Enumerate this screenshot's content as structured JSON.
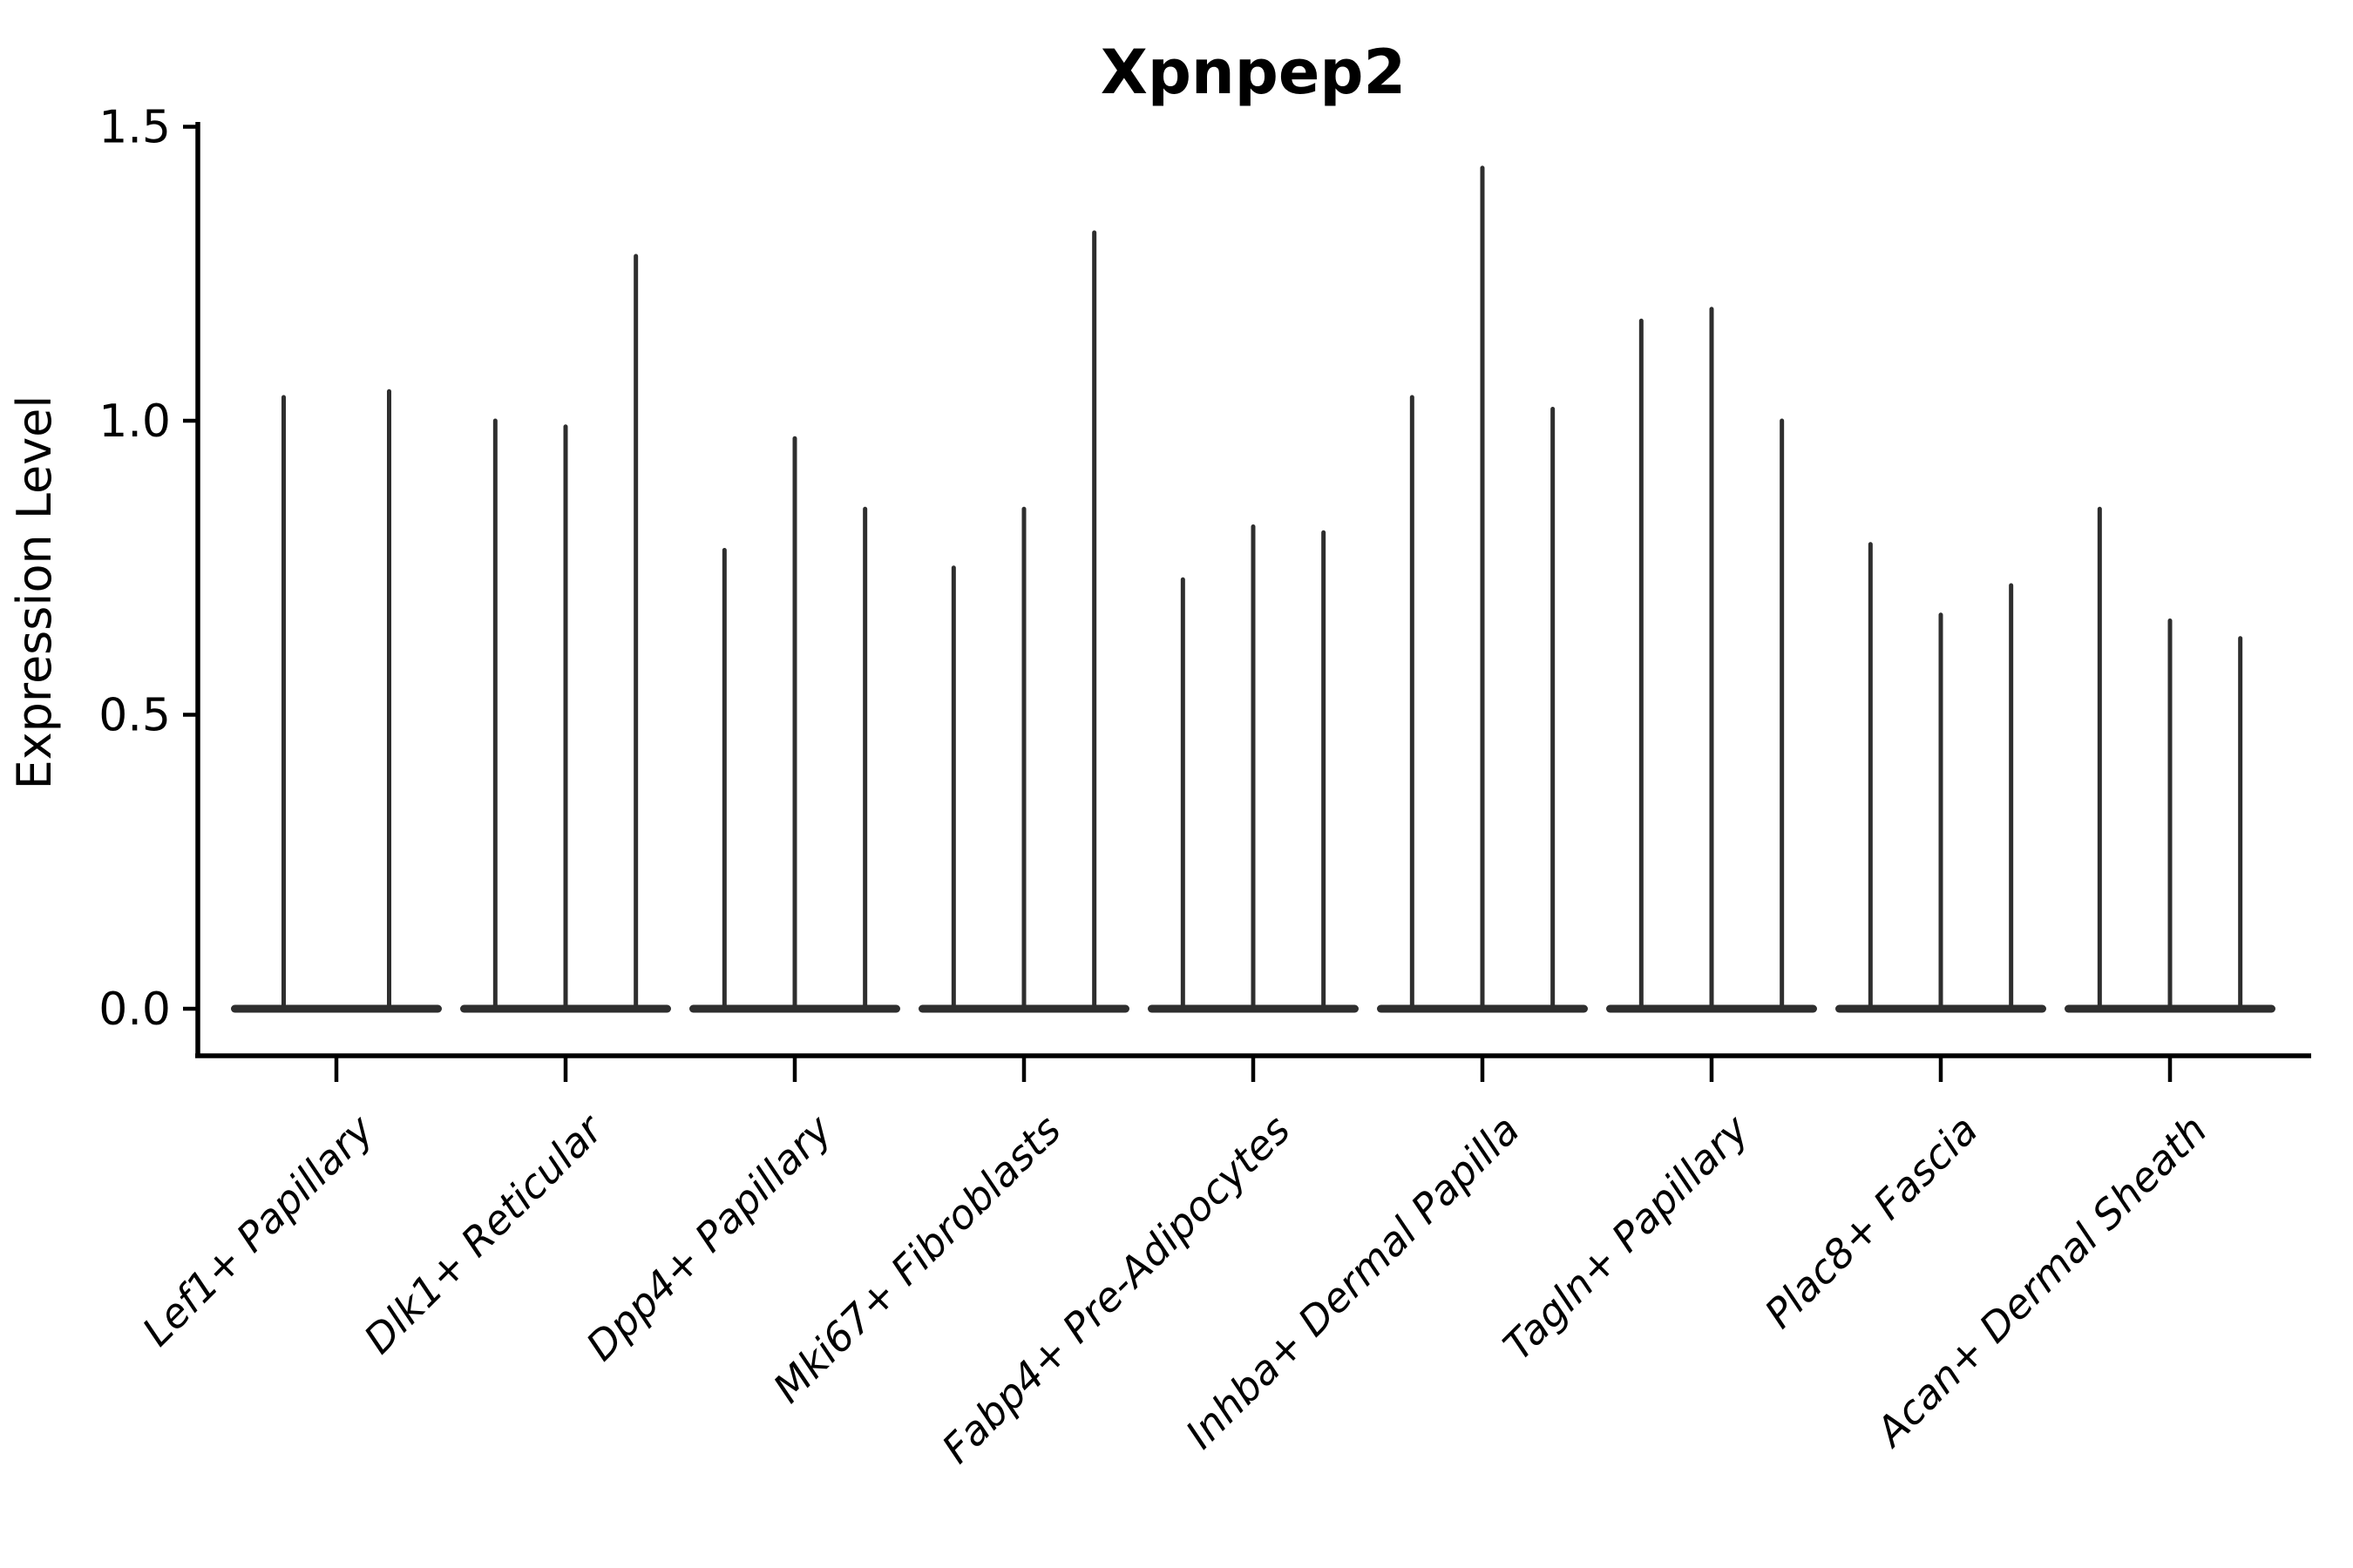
{
  "figure": {
    "title": "Xpnpep2",
    "y_axis_label": "Expression Level"
  },
  "chart_data": {
    "type": "violin",
    "title": "Xpnpep2",
    "xlabel": "",
    "ylabel": "Expression Level",
    "ylim": [
      0,
      1.5
    ],
    "yticks": [
      "0.0",
      "0.5",
      "1.0",
      "1.5"
    ],
    "ytick_values": [
      0.0,
      0.5,
      1.0,
      1.5
    ],
    "grid": false,
    "legend": null,
    "shape_note": "sparse single-cell expression violins: wide flat base at 0 with one thin vertical spike per violin reaching its maximum expression value",
    "categories": [
      "Lef1+ Papillary",
      "Dlk1+ Reticular",
      "Dpp4+ Papillary",
      "Mki67+ Fibroblasts",
      "Fabp4+ Pre-Adipocytes",
      "Inhba+ Dermal Papilla",
      "Tagln+ Papillary",
      "Plac8+ Fascia",
      "Acan+ Dermal Sheath"
    ],
    "violin_peaks": [
      [
        1.04,
        1.05
      ],
      [
        1.0,
        0.99,
        1.28
      ],
      [
        0.78,
        0.97,
        0.85
      ],
      [
        0.75,
        0.85,
        1.32
      ],
      [
        0.73,
        0.82,
        0.81
      ],
      [
        1.04,
        1.43,
        1.02
      ],
      [
        1.17,
        1.19,
        1.0
      ],
      [
        0.79,
        0.67,
        0.72
      ],
      [
        0.85,
        0.66,
        0.63
      ]
    ],
    "baseline_value": 0.0,
    "colors": {
      "violin": "#2e2e2e",
      "axis": "#000000",
      "text": "#000000",
      "background": "#ffffff"
    }
  }
}
